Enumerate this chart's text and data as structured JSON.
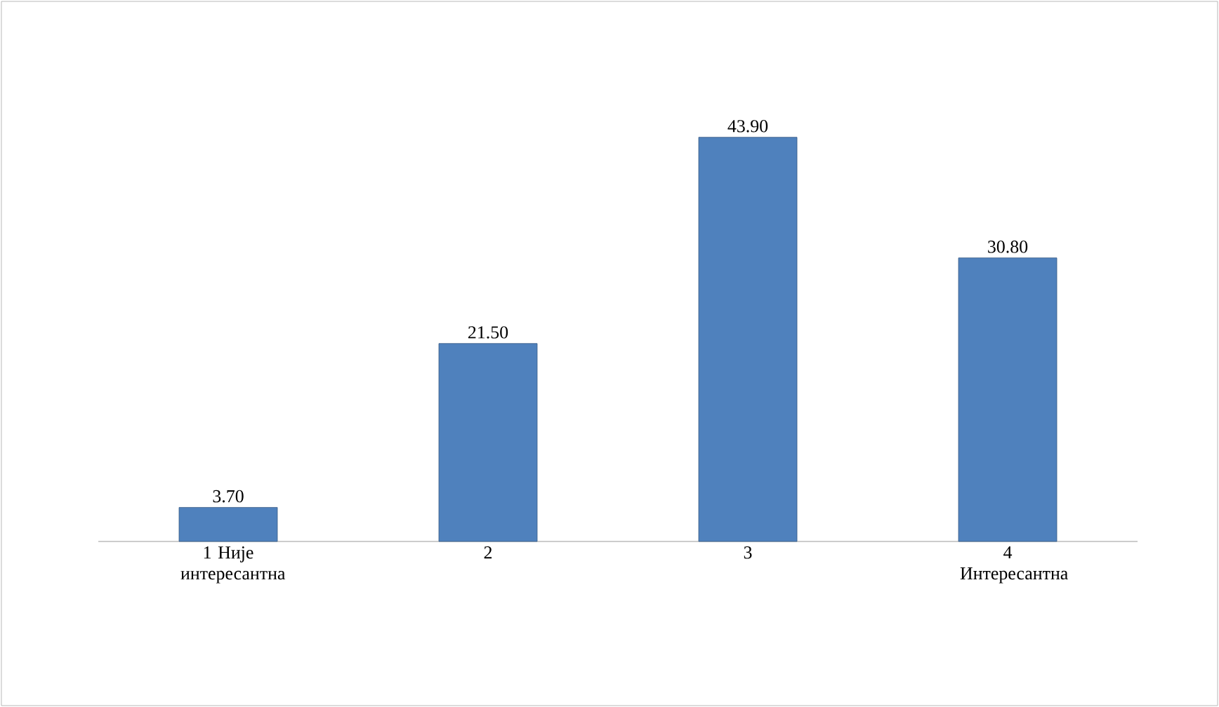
{
  "chart_data": {
    "type": "bar",
    "categories": [
      "1 Није интересантна",
      "2",
      "3",
      "4 Интересантна"
    ],
    "values": [
      3.7,
      21.5,
      43.9,
      30.8
    ],
    "value_labels": [
      "3.70",
      "21.50",
      "43.90",
      "30.80"
    ],
    "color": "#4f81bd"
  }
}
